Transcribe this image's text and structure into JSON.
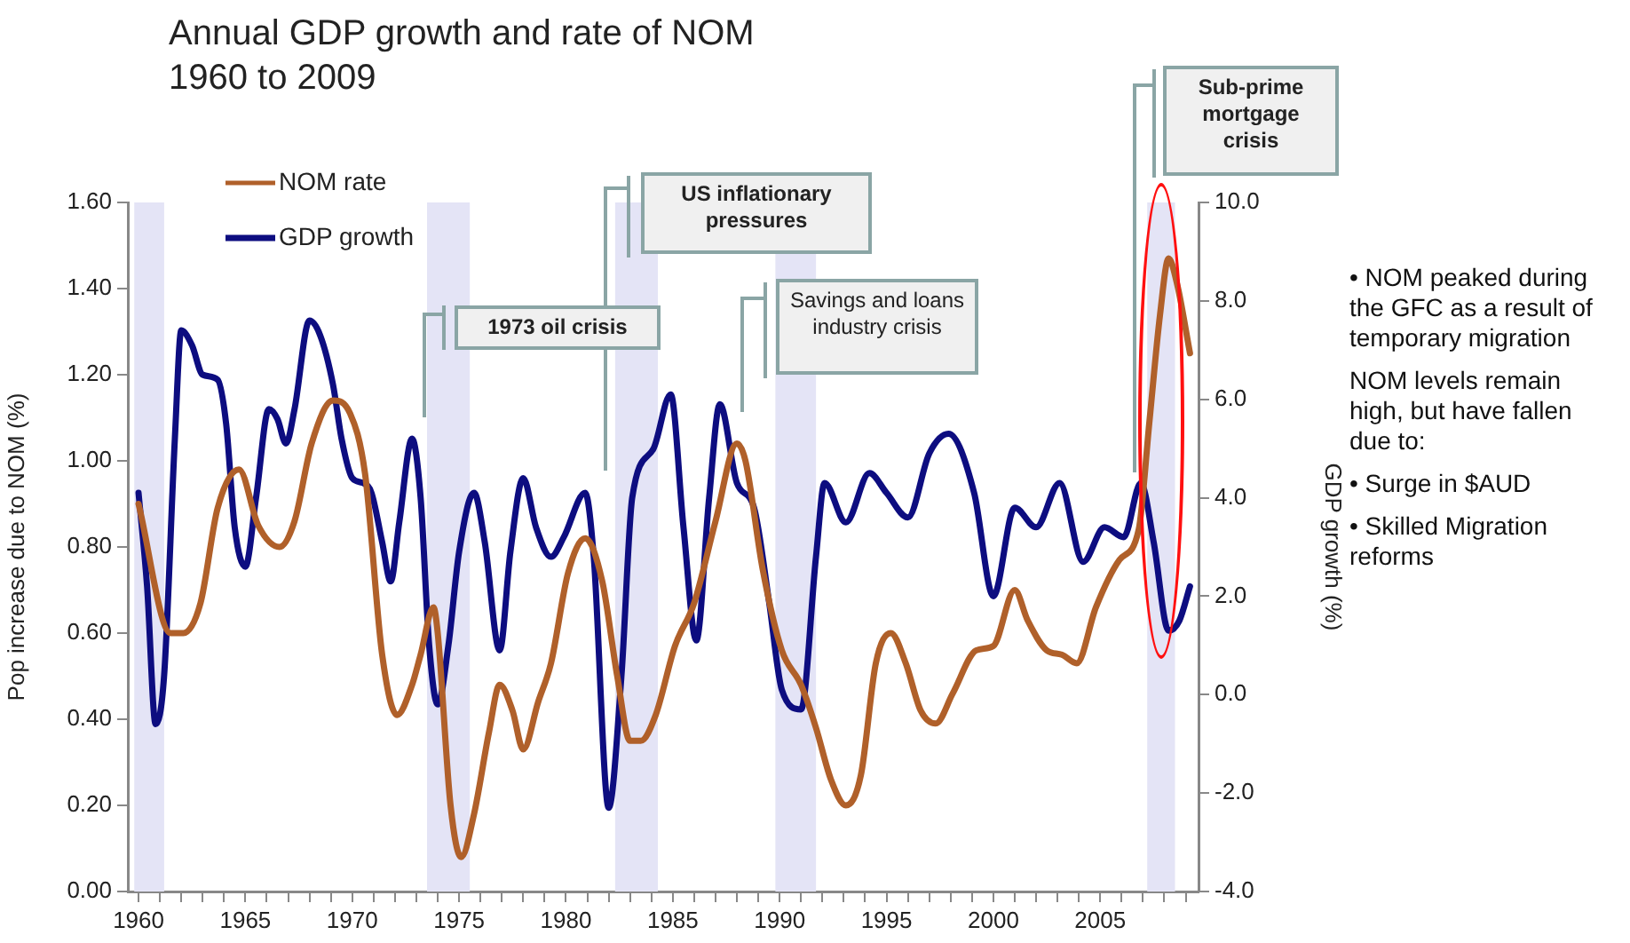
{
  "chart_data": {
    "type": "line",
    "title": "Annual GDP growth and rate of NOM",
    "subtitle": "1960 to 2009",
    "ylabel": "Pop increase due to NOM (%)",
    "y2label": "GDP growth (%)",
    "xlim": [
      1959.5,
      2009.6
    ],
    "xticks": [
      1960,
      {
        "value": 1961,
        "label": null
      },
      {
        "value": 1962,
        "label": null
      },
      {
        "value": 1963,
        "label": null
      },
      {
        "value": 1964,
        "label": null
      },
      1965,
      {
        "value": 1966,
        "label": null
      },
      {
        "value": 1967,
        "label": null
      },
      {
        "value": 1968,
        "label": null
      },
      {
        "value": 1969,
        "label": null
      },
      1970,
      {
        "value": 1971,
        "label": null
      },
      {
        "value": 1972,
        "label": null
      },
      {
        "value": 1973,
        "label": null
      },
      {
        "value": 1974,
        "label": null
      },
      1975,
      {
        "value": 1976,
        "label": null
      },
      {
        "value": 1977,
        "label": null
      },
      {
        "value": 1978,
        "label": null
      },
      {
        "value": 1979,
        "label": null
      },
      1980,
      {
        "value": 1981,
        "label": null
      },
      {
        "value": 1982,
        "label": null
      },
      {
        "value": 1983,
        "label": null
      },
      {
        "value": 1984,
        "label": null
      },
      1985,
      {
        "value": 1986,
        "label": null
      },
      {
        "value": 1987,
        "label": null
      },
      {
        "value": 1988,
        "label": null
      },
      {
        "value": 1989,
        "label": null
      },
      1990,
      {
        "value": 1991,
        "label": null
      },
      {
        "value": 1992,
        "label": null
      },
      {
        "value": 1993,
        "label": null
      },
      {
        "value": 1994,
        "label": null
      },
      1995,
      {
        "value": 1996,
        "label": null
      },
      {
        "value": 1997,
        "label": null
      },
      {
        "value": 1998,
        "label": null
      },
      {
        "value": 1999,
        "label": null
      },
      2000,
      {
        "value": 2001,
        "label": null
      },
      {
        "value": 2002,
        "label": null
      },
      {
        "value": 2003,
        "label": null
      },
      {
        "value": 2004,
        "label": null
      },
      2005,
      {
        "value": 2006,
        "label": null
      },
      {
        "value": 2007,
        "label": null
      },
      {
        "value": 2008,
        "label": null
      },
      {
        "value": 2009,
        "label": null
      }
    ],
    "ylim": [
      0,
      1.6
    ],
    "yticks": [
      {
        "value": 0,
        "label": "0.00"
      },
      {
        "value": 0.2,
        "label": "0.20"
      },
      {
        "value": 0.4,
        "label": "0.40"
      },
      {
        "value": 0.6,
        "label": "0.60"
      },
      {
        "value": 0.8,
        "label": "0.80"
      },
      {
        "value": 1,
        "label": "1.00"
      },
      {
        "value": 1.2,
        "label": "1.20"
      },
      {
        "value": 1.4,
        "label": "1.40"
      },
      {
        "value": 1.6,
        "label": "1.60"
      }
    ],
    "y2lim": [
      -4,
      10
    ],
    "y2ticks": [
      {
        "value": -4,
        "label": "-4.0"
      },
      {
        "value": -2,
        "label": "-2.0"
      },
      {
        "value": 0,
        "label": "0.0"
      },
      {
        "value": 2,
        "label": "2.0"
      },
      {
        "value": 4,
        "label": "4.0"
      },
      {
        "value": 6,
        "label": "6.0"
      },
      {
        "value": 8,
        "label": "8.0"
      },
      {
        "value": 10,
        "label": "10.0"
      }
    ],
    "legend": "top left",
    "marker": "none",
    "line_style": "solid",
    "series": [
      {
        "name": "NOM rate",
        "color": "#b0602a",
        "x": [
          1960,
          1961.5,
          1962.1,
          1962.9,
          1963.7,
          1964.7,
          1965.6,
          1966.6,
          1967.3,
          1968.1,
          1969.1,
          1969.9,
          1970.6,
          1971.4,
          1972.1,
          1972.8,
          1973.2,
          1973.8,
          1974,
          1974.6,
          1975.1,
          1975.7,
          1976.4,
          1976.9,
          1977.5,
          1978,
          1978.7,
          1979.3,
          1980.1,
          1980.9,
          1981.7,
          1982.4,
          1983,
          1983.5,
          1984.2,
          1985.1,
          1986,
          1987,
          1988,
          1988.4,
          1989.2,
          1990.1,
          1991,
          1991.7,
          1992.4,
          1993.1,
          1993.8,
          1994.5,
          1995.2,
          1995.9,
          1996.6,
          1997.3,
          1998.1,
          1999.2,
          2000,
          2001,
          2001.6,
          2002.5,
          2003.2,
          2003.9,
          2004.8,
          2005.9,
          2006.8,
          2007.3,
          2007.8,
          2008.2,
          2008.6,
          2009.2
        ],
        "values": [
          0.9,
          0.6,
          0.6,
          0.67,
          0.89,
          0.98,
          0.85,
          0.8,
          0.86,
          1.04,
          1.14,
          1.11,
          0.97,
          0.55,
          0.41,
          0.48,
          0.55,
          0.66,
          0.6,
          0.2,
          0.08,
          0.18,
          0.37,
          0.48,
          0.42,
          0.33,
          0.44,
          0.53,
          0.74,
          0.82,
          0.72,
          0.5,
          0.35,
          0.35,
          0.41,
          0.57,
          0.67,
          0.86,
          1.04,
          1,
          0.75,
          0.56,
          0.48,
          0.38,
          0.26,
          0.2,
          0.27,
          0.53,
          0.6,
          0.53,
          0.42,
          0.39,
          0.46,
          0.56,
          0.57,
          0.7,
          0.63,
          0.56,
          0.55,
          0.53,
          0.66,
          0.77,
          0.84,
          1.09,
          1.34,
          1.47,
          1.41,
          1.25
        ]
      },
      {
        "name": "GDP growth",
        "color": "#0d0d80",
        "axis": "y2",
        "x": [
          1960,
          1960.4,
          1960.8,
          1961.2,
          1961.7,
          1962,
          1962.5,
          1963,
          1963.7,
          1964.1,
          1964.5,
          1965,
          1965.5,
          1966.1,
          1966.5,
          1966.9,
          1967.3,
          1968,
          1968.5,
          1969.1,
          1969.5,
          1970,
          1970.5,
          1970.9,
          1971.4,
          1971.8,
          1972.2,
          1972.8,
          1973.2,
          1973.6,
          1974,
          1974.5,
          1975,
          1975.7,
          1976.2,
          1976.9,
          1977.4,
          1978,
          1978.6,
          1979.3,
          1979.9,
          1980.9,
          1981.3,
          1982,
          1982.6,
          1983.1,
          1984.1,
          1984.9,
          1985.5,
          1986.1,
          1986.7,
          1987.2,
          1988,
          1988.8,
          1989.5,
          1990.1,
          1991,
          1991.7,
          1992.1,
          1993.1,
          1994.2,
          1995,
          1996,
          1997,
          1997.9,
          1999.1,
          2000,
          2001,
          2002,
          2003.1,
          2004.2,
          2005.2,
          2006.1,
          2006.9,
          2007.5,
          2008.2,
          2008.7,
          2009.2
        ],
        "values": [
          4.1,
          2.2,
          -0.6,
          0.4,
          5.2,
          7.4,
          7.1,
          6.5,
          6.4,
          5.5,
          3.4,
          2.6,
          4,
          5.8,
          5.6,
          5.1,
          5.8,
          7.6,
          7.3,
          6.3,
          5.2,
          4.4,
          4.3,
          4.1,
          3.1,
          2.3,
          3.5,
          5.2,
          4,
          1,
          -0.2,
          1,
          2.9,
          4.1,
          3.1,
          0.9,
          2.9,
          4.4,
          3.4,
          2.8,
          3.2,
          4.1,
          2.8,
          -2.3,
          0.4,
          4,
          5,
          6.1,
          3.4,
          1.1,
          4,
          5.9,
          4.3,
          3.8,
          1.9,
          0.1,
          -0.3,
          2.8,
          4.3,
          3.5,
          4.5,
          4.1,
          3.6,
          4.9,
          5.3,
          4.1,
          2,
          3.8,
          3.4,
          4.3,
          2.7,
          3.4,
          3.2,
          4.3,
          3.1,
          1.3,
          1.5,
          2.2
        ]
      }
    ],
    "bands": [
      {
        "axis": "x",
        "from": 1959.8,
        "to": 1961.2,
        "color": "#e4e4f6"
      },
      {
        "axis": "x",
        "from": 1973.5,
        "to": 1975.5,
        "color": "#e4e4f6"
      },
      {
        "axis": "x",
        "from": 1982.3,
        "to": 1984.3,
        "color": "#e4e4f6"
      },
      {
        "axis": "x",
        "from": 1989.8,
        "to": 1991.7,
        "color": "#e4e4f6"
      },
      {
        "axis": "x",
        "from": 2007.2,
        "to": 2008.5,
        "color": "#e4e4f6"
      }
    ],
    "annotations": [
      "1973 oil crisis",
      "US inflationary pressures",
      "Savings and loans industry crisis",
      "Sub-prime mortgage crisis",
      "• NOM peaked during the GFC as a result of temporary migration",
      "NOM levels remain high, but have fallen due to:",
      "• Surge in $AUD",
      "• Skilled Migration reforms"
    ]
  }
}
